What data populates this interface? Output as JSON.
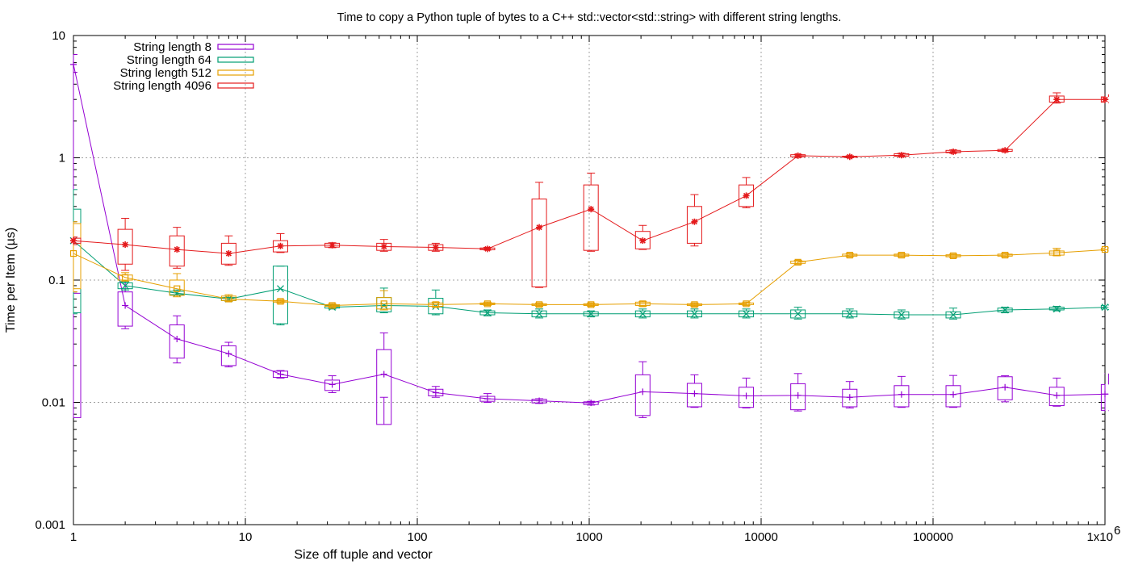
{
  "chart_data": {
    "type": "line",
    "title": "Time to copy a Python tuple of bytes to a C++ std::vector<std::string> with different string lengths.",
    "xlabel": "Size off tuple and vector",
    "ylabel": "Time per Item (µs)",
    "x_scale": "log",
    "y_scale": "log",
    "xlim": [
      1,
      1000000
    ],
    "ylim": [
      0.001,
      10
    ],
    "grid": true,
    "legend_position": "top-left",
    "x_ticks": [
      {
        "value": 1,
        "label": "1"
      },
      {
        "value": 10,
        "label": "10"
      },
      {
        "value": 100,
        "label": "100"
      },
      {
        "value": 1000,
        "label": "1000"
      },
      {
        "value": 10000,
        "label": "10000"
      },
      {
        "value": 100000,
        "label": "100000"
      },
      {
        "value": 1000000,
        "label": "1x10",
        "sup": "6"
      }
    ],
    "y_ticks": [
      {
        "value": 0.001,
        "label": "0.001"
      },
      {
        "value": 0.01,
        "label": "0.01"
      },
      {
        "value": 0.1,
        "label": "0.1"
      },
      {
        "value": 1,
        "label": "1"
      },
      {
        "value": 10,
        "label": "10"
      }
    ],
    "x": [
      1,
      2,
      4,
      8,
      16,
      32,
      64,
      128,
      256,
      512,
      1024,
      2048,
      4096,
      8192,
      16384,
      32768,
      65536,
      131072,
      262144,
      524288,
      1048576
    ],
    "series": [
      {
        "name": "String length 8",
        "color": "#9400d3",
        "marker": "plus",
        "values": [
          5.8,
          0.062,
          0.033,
          0.025,
          0.017,
          0.014,
          0.017,
          0.012,
          0.0107,
          0.0103,
          0.0099,
          0.0122,
          0.0118,
          0.0113,
          0.0114,
          0.011,
          0.0116,
          0.0116,
          0.0133,
          0.0114,
          0.0117
        ],
        "box": [
          [
            0.0075,
            0.078,
            5.0,
            7.0
          ],
          [
            0.042,
            0.08,
            0.04,
            0.1
          ],
          [
            0.023,
            0.043,
            0.021,
            0.051
          ],
          [
            0.02,
            0.029,
            0.0195,
            0.031
          ],
          [
            0.016,
            0.018,
            0.0158,
            0.0182
          ],
          [
            0.0125,
            0.0152,
            0.012,
            0.0165
          ],
          [
            0.0066,
            0.027,
            0.011,
            0.037
          ],
          [
            0.0113,
            0.0128,
            0.011,
            0.0135
          ],
          [
            0.0102,
            0.0112,
            0.01,
            0.0118
          ],
          [
            0.0099,
            0.0106,
            0.0098,
            0.0107
          ],
          [
            0.0096,
            0.0101,
            0.0095,
            0.0102
          ],
          [
            0.0078,
            0.0168,
            0.0075,
            0.0215
          ],
          [
            0.0092,
            0.0143,
            0.0091,
            0.0168
          ],
          [
            0.0091,
            0.0133,
            0.009,
            0.0158
          ],
          [
            0.0087,
            0.0142,
            0.0085,
            0.0172
          ],
          [
            0.0092,
            0.0128,
            0.009,
            0.0148
          ],
          [
            0.0092,
            0.0137,
            0.0091,
            0.0163
          ],
          [
            0.0092,
            0.0137,
            0.0091,
            0.0166
          ],
          [
            0.0105,
            0.0162,
            0.0101,
            0.0165
          ],
          [
            0.0094,
            0.0133,
            0.0093,
            0.0158
          ],
          [
            0.0086,
            0.014,
            0.0085,
            0.0172
          ]
        ]
      },
      {
        "name": "String length 64",
        "color": "#009e73",
        "marker": "x",
        "values": [
          0.21,
          0.09,
          0.078,
          0.07,
          0.085,
          0.06,
          0.062,
          0.061,
          0.054,
          0.053,
          0.053,
          0.053,
          0.053,
          0.053,
          0.053,
          0.053,
          0.052,
          0.052,
          0.057,
          0.058,
          0.06
        ],
        "box": [
          [
            0.054,
            0.38,
            0.053,
            0.55
          ],
          [
            0.085,
            0.095,
            0.083,
            0.097
          ],
          [
            0.076,
            0.081,
            0.075,
            0.083
          ],
          [
            0.068,
            0.072,
            0.067,
            0.074
          ],
          [
            0.044,
            0.13,
            0.043,
            0.13
          ],
          [
            0.059,
            0.062,
            0.058,
            0.063
          ],
          [
            0.055,
            0.072,
            0.054,
            0.086
          ],
          [
            0.053,
            0.071,
            0.052,
            0.083
          ],
          [
            0.052,
            0.056,
            0.051,
            0.057
          ],
          [
            0.05,
            0.056,
            0.049,
            0.058
          ],
          [
            0.051,
            0.055,
            0.05,
            0.056
          ],
          [
            0.05,
            0.056,
            0.049,
            0.058
          ],
          [
            0.05,
            0.056,
            0.049,
            0.058
          ],
          [
            0.05,
            0.056,
            0.049,
            0.058
          ],
          [
            0.049,
            0.057,
            0.048,
            0.06
          ],
          [
            0.05,
            0.056,
            0.049,
            0.058
          ],
          [
            0.049,
            0.055,
            0.048,
            0.057
          ],
          [
            0.049,
            0.055,
            0.048,
            0.059
          ],
          [
            0.055,
            0.059,
            0.054,
            0.06
          ],
          [
            0.057,
            0.06,
            0.056,
            0.061
          ],
          [
            0.058,
            0.062,
            0.057,
            0.063
          ]
        ]
      },
      {
        "name": "String length 512",
        "color": "#e69f00",
        "marker": "square",
        "values": [
          0.165,
          0.105,
          0.085,
          0.07,
          0.067,
          0.062,
          0.064,
          0.063,
          0.064,
          0.063,
          0.063,
          0.064,
          0.063,
          0.064,
          0.14,
          0.16,
          0.16,
          0.158,
          0.16,
          0.167,
          0.178
        ],
        "box": [
          [
            0.085,
            0.29,
            0.08,
            0.3
          ],
          [
            0.1,
            0.11,
            0.098,
            0.115
          ],
          [
            0.075,
            0.1,
            0.073,
            0.113
          ],
          [
            0.068,
            0.074,
            0.067,
            0.076
          ],
          [
            0.066,
            0.068,
            0.065,
            0.069
          ],
          [
            0.061,
            0.063,
            0.06,
            0.064
          ],
          [
            0.058,
            0.072,
            0.057,
            0.082
          ],
          [
            0.061,
            0.065,
            0.06,
            0.066
          ],
          [
            0.063,
            0.065,
            0.062,
            0.066
          ],
          [
            0.062,
            0.064,
            0.061,
            0.065
          ],
          [
            0.062,
            0.064,
            0.061,
            0.065
          ],
          [
            0.062,
            0.066,
            0.061,
            0.067
          ],
          [
            0.062,
            0.064,
            0.061,
            0.065
          ],
          [
            0.063,
            0.065,
            0.062,
            0.066
          ],
          [
            0.137,
            0.143,
            0.135,
            0.145
          ],
          [
            0.157,
            0.163,
            0.155,
            0.165
          ],
          [
            0.157,
            0.163,
            0.155,
            0.165
          ],
          [
            0.155,
            0.161,
            0.153,
            0.163
          ],
          [
            0.157,
            0.163,
            0.155,
            0.165
          ],
          [
            0.16,
            0.173,
            0.158,
            0.182
          ],
          [
            0.174,
            0.182,
            0.172,
            0.185
          ]
        ]
      },
      {
        "name": "String length 4096",
        "color": "#e41a1c",
        "marker": "star",
        "values": [
          0.21,
          0.195,
          0.178,
          0.165,
          0.19,
          0.193,
          0.188,
          0.185,
          0.18,
          0.27,
          0.38,
          0.21,
          0.3,
          0.49,
          1.04,
          1.02,
          1.05,
          1.12,
          1.15,
          3.0,
          3.0
        ],
        "box": [
          [
            0.2,
            0.22,
            0.195,
            0.225
          ],
          [
            0.135,
            0.26,
            0.12,
            0.32
          ],
          [
            0.13,
            0.23,
            0.125,
            0.27
          ],
          [
            0.135,
            0.2,
            0.132,
            0.23
          ],
          [
            0.17,
            0.21,
            0.168,
            0.24
          ],
          [
            0.186,
            0.2,
            0.184,
            0.202
          ],
          [
            0.175,
            0.2,
            0.172,
            0.215
          ],
          [
            0.175,
            0.195,
            0.172,
            0.2
          ],
          [
            0.177,
            0.183,
            0.176,
            0.185
          ],
          [
            0.088,
            0.46,
            0.087,
            0.63
          ],
          [
            0.175,
            0.6,
            0.172,
            0.75
          ],
          [
            0.18,
            0.25,
            0.178,
            0.28
          ],
          [
            0.2,
            0.4,
            0.19,
            0.5
          ],
          [
            0.4,
            0.6,
            0.39,
            0.69
          ],
          [
            1.02,
            1.06,
            1.01,
            1.07
          ],
          [
            1.01,
            1.03,
            1.0,
            1.04
          ],
          [
            1.03,
            1.08,
            1.02,
            1.09
          ],
          [
            1.1,
            1.15,
            1.09,
            1.16
          ],
          [
            1.13,
            1.17,
            1.12,
            1.18
          ],
          [
            2.85,
            3.2,
            2.8,
            3.4
          ],
          [
            2.85,
            3.15,
            2.8,
            3.3
          ]
        ]
      }
    ]
  }
}
